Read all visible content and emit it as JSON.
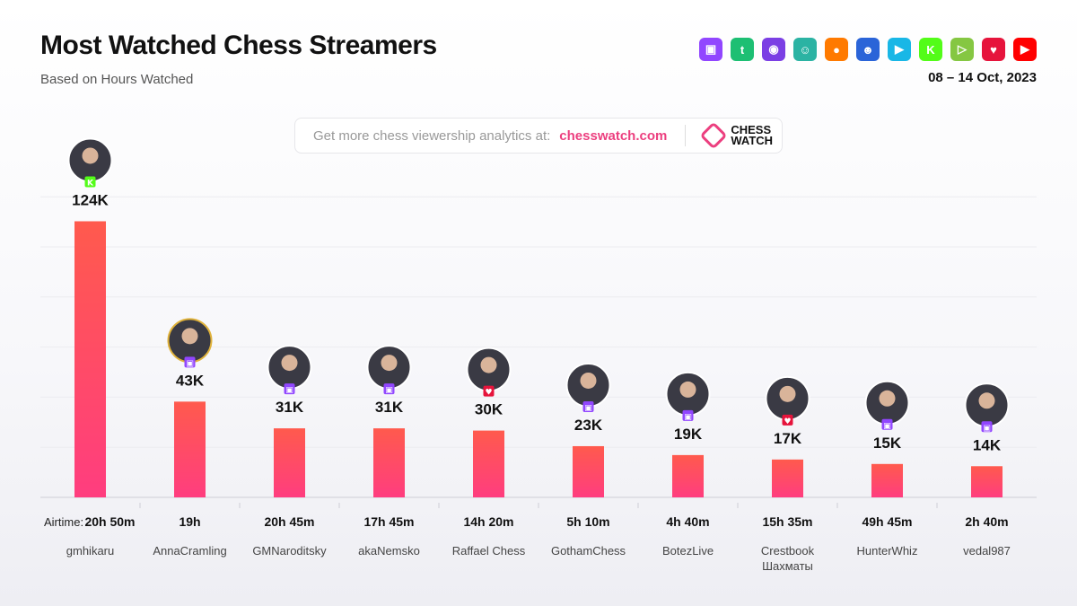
{
  "header": {
    "title": "Most Watched Chess Streamers",
    "subtitle": "Based on Hours Watched",
    "date_range": "08 – 14 Oct, 2023"
  },
  "platform_icons": [
    {
      "icon": "twitch-icon",
      "color": "#9146ff",
      "glyph": "▣"
    },
    {
      "icon": "trovo-icon",
      "color": "#1dbf73",
      "glyph": "t"
    },
    {
      "icon": "dlive-icon",
      "color": "#7b3fe4",
      "glyph": "◉"
    },
    {
      "icon": "ghost-icon",
      "color": "#2bb3a3",
      "glyph": "☺"
    },
    {
      "icon": "camera-icon",
      "color": "#ff7a00",
      "glyph": "●"
    },
    {
      "icon": "robot-tv-icon",
      "color": "#2a64d8",
      "glyph": "☻"
    },
    {
      "icon": "video-cam-icon",
      "color": "#19b7e6",
      "glyph": "▶"
    },
    {
      "icon": "kick-icon",
      "color": "#53fc18",
      "glyph": "K"
    },
    {
      "icon": "rumble-icon",
      "color": "#85c742",
      "glyph": "▷"
    },
    {
      "icon": "vk-heart-icon",
      "color": "#e6143c",
      "glyph": "♥"
    },
    {
      "icon": "youtube-icon",
      "color": "#ff0000",
      "glyph": "▶"
    }
  ],
  "banner": {
    "text": "Get more chess viewership analytics at:",
    "link": "chesswatch.com",
    "logo_line1": "CHESS",
    "logo_line2": "WATCH"
  },
  "airtime_label": "Airtime:",
  "colors": {
    "bar_top": "#ff5a4d",
    "bar_bottom": "#ff3d7f"
  },
  "chart_data": {
    "type": "bar",
    "categories": [
      "gmhikaru",
      "AnnaCramling",
      "GMNaroditsky",
      "akaNemsko",
      "Raffael Chess",
      "GothamChess",
      "BotezLive",
      "Crestbook Шахматы",
      "HunterWhiz",
      "vedal987"
    ],
    "values": [
      124,
      43,
      31,
      31,
      30,
      23,
      19,
      17,
      15,
      14
    ],
    "value_labels": [
      "124K",
      "43K",
      "31K",
      "31K",
      "30K",
      "23K",
      "19K",
      "17K",
      "15K",
      "14K"
    ],
    "airtime": [
      "20h 50m",
      "19h",
      "20h 45m",
      "17h 45m",
      "14h 20m",
      "5h 10m",
      "4h 40m",
      "15h 35m",
      "49h 45m",
      "2h 40m"
    ],
    "platforms": [
      "kick",
      "twitch",
      "twitch",
      "twitch",
      "vk",
      "twitch",
      "twitch",
      "vk",
      "twitch",
      "twitch"
    ],
    "ylim": [
      0,
      150
    ],
    "grid": true
  }
}
